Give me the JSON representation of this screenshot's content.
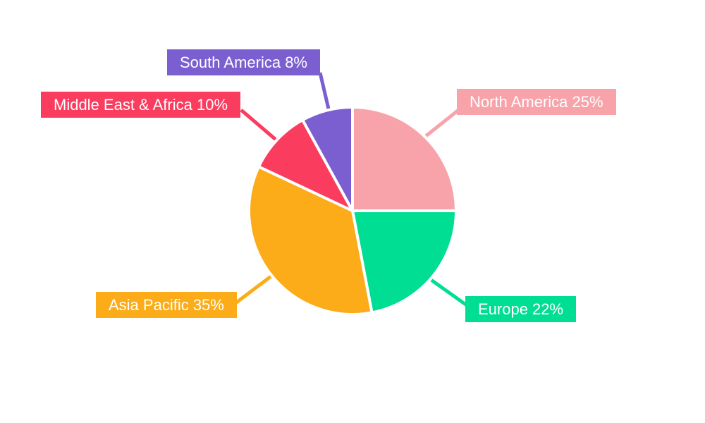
{
  "background_color": "#ffffff",
  "chart_data": {
    "type": "pie",
    "title": "",
    "legend_position": "external-callout-labels",
    "direction": "clockwise",
    "start_angle_deg": 0,
    "slice_gap_color": "#ffffff",
    "label_text_color": "#ffffff",
    "categories": [
      "North America",
      "Europe",
      "Asia Pacific",
      "Middle East & Africa",
      "South America"
    ],
    "values": [
      25,
      22,
      35,
      10,
      8
    ],
    "slices": [
      {
        "name": "North America",
        "value": 25,
        "label": "North America 25%",
        "color": "#F8A3A9"
      },
      {
        "name": "Europe",
        "value": 22,
        "label": "Europe 22%",
        "color": "#00DE94"
      },
      {
        "name": "Asia Pacific",
        "value": 35,
        "label": "Asia Pacific 35%",
        "color": "#FBAC18"
      },
      {
        "name": "Middle East & Africa",
        "value": 10,
        "label": "Middle East & Africa 10%",
        "color": "#FA3C5F"
      },
      {
        "name": "South America",
        "value": 8,
        "label": "South America 8%",
        "color": "#7B5FD0"
      }
    ]
  }
}
